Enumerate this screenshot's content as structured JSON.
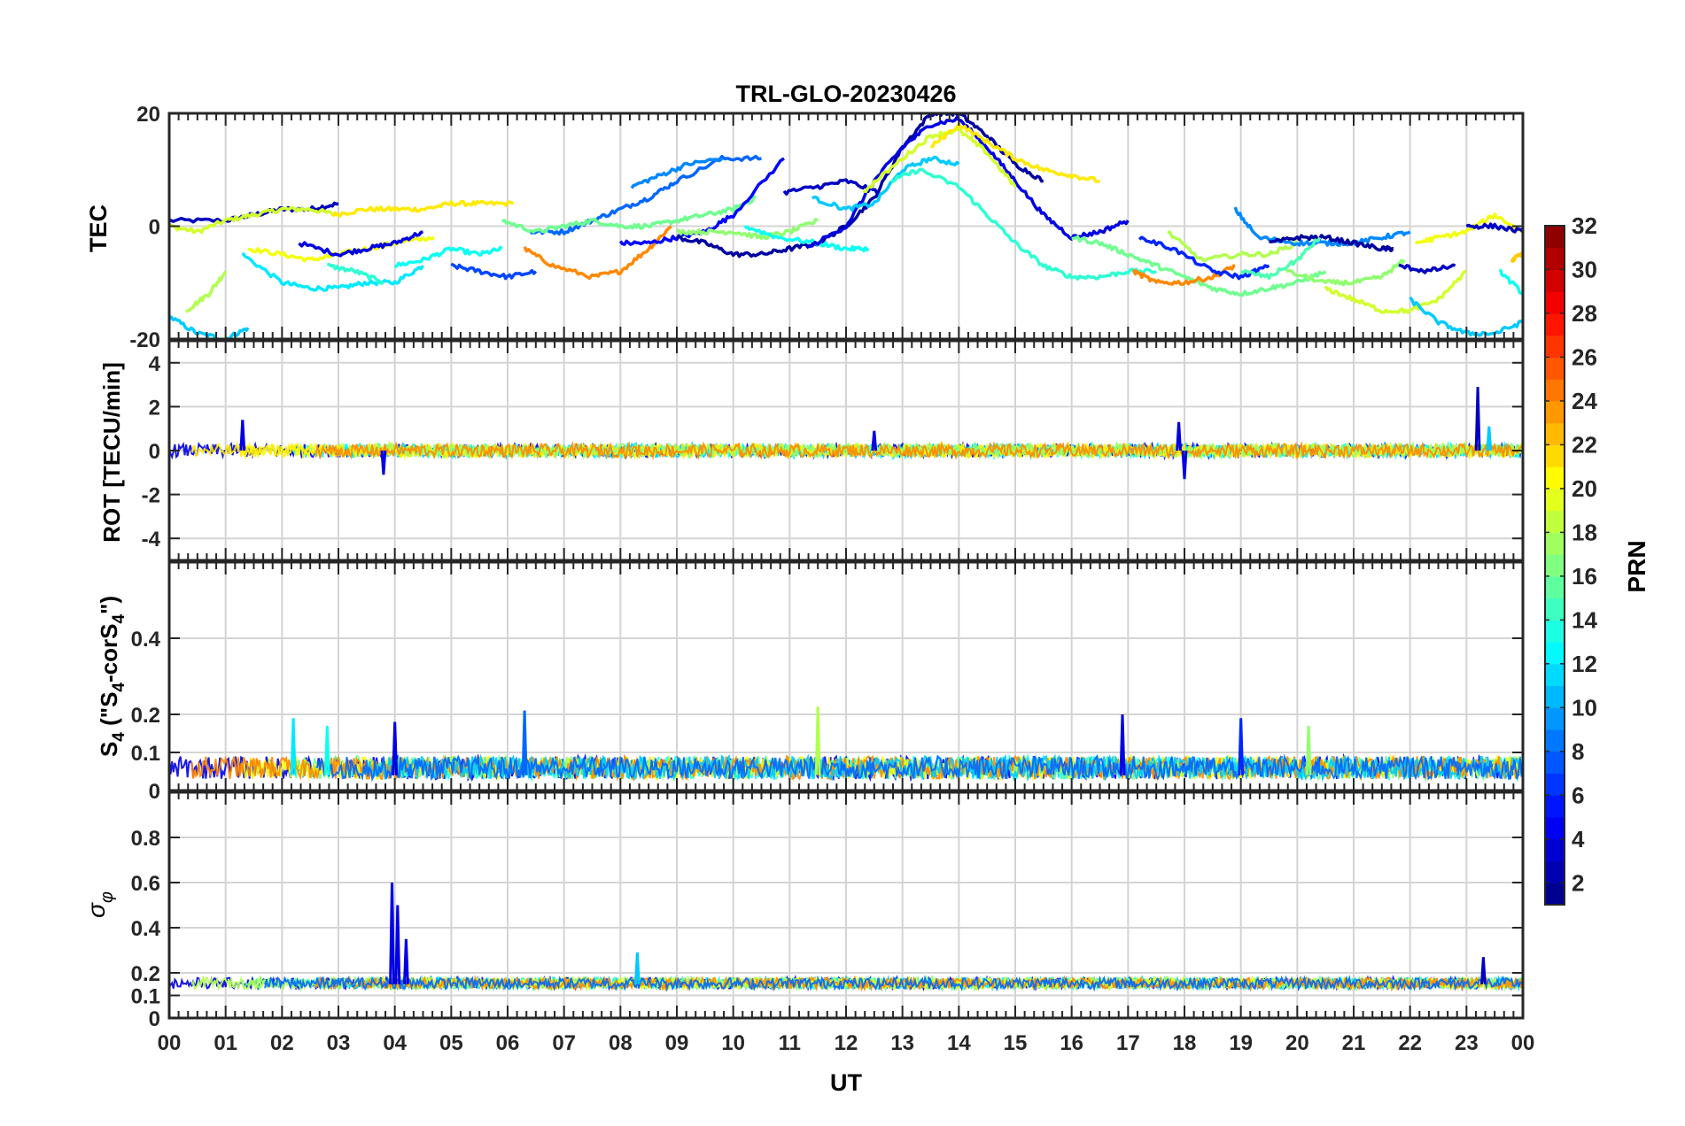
{
  "title": "TRL-GLO-20230426",
  "xlabel": "UT",
  "x_ticks": [
    "00",
    "01",
    "02",
    "03",
    "04",
    "05",
    "06",
    "07",
    "08",
    "09",
    "10",
    "11",
    "12",
    "13",
    "14",
    "15",
    "16",
    "17",
    "18",
    "19",
    "20",
    "21",
    "22",
    "23",
    "00"
  ],
  "colorbar": {
    "label": "PRN",
    "range": [
      1,
      32
    ],
    "ticks": [
      2,
      4,
      6,
      8,
      10,
      12,
      14,
      16,
      18,
      20,
      22,
      24,
      26,
      28,
      30,
      32
    ],
    "colormap": "jet"
  },
  "chart_data": [
    {
      "type": "line",
      "panel": "TEC",
      "ylabel": "TEC",
      "xlim": [
        0,
        24
      ],
      "ylim": [
        -20,
        20
      ],
      "yticks": [
        20,
        0,
        -20
      ],
      "series": [
        {
          "prn": 3,
          "x": [
            0.0,
            1.0,
            1.5,
            2.0,
            2.5,
            3.0
          ],
          "y": [
            1,
            1,
            2,
            3,
            3,
            4
          ]
        },
        {
          "prn": 19,
          "x": [
            0.0,
            0.5,
            1.0,
            1.5,
            2.0,
            2.5,
            3.0
          ],
          "y": [
            0,
            -1,
            1,
            2,
            3,
            3,
            2
          ]
        },
        {
          "prn": 21,
          "x": [
            2.9,
            3.5,
            4.0,
            4.5,
            5.0,
            5.5,
            6.1
          ],
          "y": [
            2,
            3,
            3,
            3,
            4,
            4,
            4
          ]
        },
        {
          "prn": 11,
          "x": [
            0.0,
            0.5,
            1.0,
            1.4
          ],
          "y": [
            -16,
            -19,
            -20,
            -18
          ]
        },
        {
          "prn": 12,
          "x": [
            1.3,
            2.0,
            2.5,
            3.0,
            3.5,
            4.0,
            4.5
          ],
          "y": [
            -5,
            -10,
            -11,
            -11,
            -10,
            -10,
            -7
          ]
        },
        {
          "prn": 18,
          "x": [
            0.3,
            0.7,
            1.0
          ],
          "y": [
            -15,
            -12,
            -8
          ]
        },
        {
          "prn": 20,
          "x": [
            1.4,
            2.0,
            2.5,
            3.0,
            3.5,
            4.0,
            4.7
          ],
          "y": [
            -4,
            -5,
            -6,
            -5,
            -4,
            -3,
            -2
          ]
        },
        {
          "prn": 4,
          "x": [
            2.3,
            3.0,
            3.5,
            4.0,
            4.5
          ],
          "y": [
            -3,
            -5,
            -4,
            -3,
            -1
          ]
        },
        {
          "prn": 14,
          "x": [
            2.8,
            3.3,
            3.8
          ],
          "y": [
            -7,
            -8,
            -10
          ]
        },
        {
          "prn": 13,
          "x": [
            4.0,
            4.5,
            5.0,
            5.5,
            5.9
          ],
          "y": [
            -7,
            -6,
            -4,
            -5,
            -4
          ]
        },
        {
          "prn": 7,
          "x": [
            5.0,
            5.5,
            6.0,
            6.5
          ],
          "y": [
            -7,
            -8,
            -9,
            -8
          ]
        },
        {
          "prn": 24,
          "x": [
            6.3,
            6.8,
            7.5,
            8.0,
            8.5,
            8.9
          ],
          "y": [
            -4,
            -7,
            -9,
            -8,
            -4,
            0
          ]
        },
        {
          "prn": 8,
          "x": [
            6.4,
            7.0,
            7.5,
            8.0,
            8.5,
            9.0,
            9.8,
            10.5
          ],
          "y": [
            -1,
            -1,
            1,
            3,
            5,
            8,
            12,
            12
          ]
        },
        {
          "prn": 16,
          "x": [
            5.9,
            6.5,
            7.0,
            7.5,
            8.0,
            8.5,
            9.0,
            9.5,
            10.0,
            10.4
          ],
          "y": [
            1,
            -1,
            0,
            1,
            0,
            0,
            1,
            2,
            3,
            5
          ]
        },
        {
          "prn": 9,
          "x": [
            8.2,
            8.7,
            9.2,
            9.8
          ],
          "y": [
            7,
            9,
            11,
            12
          ]
        },
        {
          "prn": 5,
          "x": [
            8.0,
            8.5,
            9.0,
            9.5,
            10.0,
            10.9
          ],
          "y": [
            -3,
            -3,
            -2,
            -1,
            2,
            12
          ]
        },
        {
          "prn": 2,
          "x": [
            9.0,
            9.5,
            10.0,
            10.5,
            11.0,
            11.5,
            12.0,
            12.5,
            13.0,
            13.5,
            14.0,
            14.5,
            15.0,
            15.5
          ],
          "y": [
            -2,
            -3,
            -5,
            -5,
            -4,
            -3,
            0,
            5,
            14,
            20,
            20,
            16,
            11,
            8
          ]
        },
        {
          "prn": 17,
          "x": [
            9.0,
            9.5,
            10.0,
            10.5,
            11.0,
            11.5
          ],
          "y": [
            -1,
            -1,
            -1,
            -2,
            -1,
            1
          ]
        },
        {
          "prn": 13,
          "x": [
            10.2,
            10.8,
            11.5,
            12.0,
            12.4
          ],
          "y": [
            0,
            -2,
            -3,
            -4,
            -4
          ]
        },
        {
          "prn": 3,
          "x": [
            10.9,
            11.5,
            12.0,
            12.6
          ],
          "y": [
            6,
            7,
            8,
            6
          ]
        },
        {
          "prn": 4,
          "x": [
            11.3,
            12.0,
            12.5,
            13.0,
            13.5,
            14.0,
            14.5,
            15.0,
            15.5,
            16.0,
            16.5,
            17.0
          ],
          "y": [
            -4,
            0,
            8,
            14,
            18,
            19,
            14,
            8,
            2,
            -2,
            -1,
            1
          ]
        },
        {
          "prn": 11,
          "x": [
            11.4,
            12.0,
            12.5,
            13.0,
            13.5,
            14.0
          ],
          "y": [
            5,
            3,
            4,
            10,
            12,
            11
          ]
        },
        {
          "prn": 19,
          "x": [
            12.3,
            13.0,
            13.5,
            14.0,
            14.5,
            15.0
          ],
          "y": [
            6,
            12,
            16,
            17,
            13,
            7
          ]
        },
        {
          "prn": 21,
          "x": [
            13.5,
            14.0,
            14.5,
            15.0,
            15.5,
            16.0,
            16.5
          ],
          "y": [
            14,
            18,
            15,
            12,
            10,
            9,
            8
          ]
        },
        {
          "prn": 14,
          "x": [
            12.8,
            13.3,
            14.0,
            14.5,
            15.0,
            15.5,
            16.0,
            16.5,
            17.0,
            17.5
          ],
          "y": [
            8,
            10,
            7,
            2,
            -3,
            -7,
            -9,
            -9,
            -8,
            -8
          ]
        },
        {
          "prn": 16,
          "x": [
            16.0,
            16.5,
            17.0,
            17.5,
            18.0,
            18.5,
            19.0,
            19.5,
            20.0,
            20.5
          ],
          "y": [
            -2,
            -3,
            -5,
            -7,
            -9,
            -11,
            -12,
            -11,
            -10,
            -8
          ]
        },
        {
          "prn": 24,
          "x": [
            17.1,
            17.5,
            18.0,
            18.5,
            18.9
          ],
          "y": [
            -8,
            -10,
            -10,
            -9,
            -7
          ]
        },
        {
          "prn": 18,
          "x": [
            17.7,
            18.3,
            19.0,
            19.5,
            20.0
          ],
          "y": [
            -1,
            -6,
            -5,
            -5,
            -3
          ]
        },
        {
          "prn": 6,
          "x": [
            17.2,
            17.8,
            18.5,
            19.0,
            19.5
          ],
          "y": [
            -2,
            -4,
            -8,
            -9,
            -7
          ]
        },
        {
          "prn": 9,
          "x": [
            18.9,
            19.3,
            20.0,
            20.5,
            21.0,
            21.5,
            22.0
          ],
          "y": [
            3,
            -2,
            -3,
            -3,
            -3,
            -2,
            -1
          ]
        },
        {
          "prn": 2,
          "x": [
            19.5,
            20.0,
            20.5,
            21.0,
            21.5,
            21.7
          ],
          "y": [
            -3,
            -2,
            -2,
            -3,
            -4,
            -4
          ]
        },
        {
          "prn": 15,
          "x": [
            19.0,
            19.5,
            20.0,
            20.4
          ],
          "y": [
            -8,
            -9,
            -6,
            -2
          ]
        },
        {
          "prn": 17,
          "x": [
            19.8,
            20.5,
            21.0,
            21.5,
            21.9
          ],
          "y": [
            -8,
            -10,
            -10,
            -9,
            -6
          ]
        },
        {
          "prn": 19,
          "x": [
            20.5,
            21.0,
            21.5,
            22.0,
            22.5,
            23.0
          ],
          "y": [
            -11,
            -13,
            -15,
            -15,
            -13,
            -8
          ]
        },
        {
          "prn": 3,
          "x": [
            21.8,
            22.3,
            22.8
          ],
          "y": [
            -7,
            -8,
            -7
          ]
        },
        {
          "prn": 11,
          "x": [
            22.0,
            22.5,
            23.0,
            23.5,
            24.0
          ],
          "y": [
            -13,
            -17,
            -19,
            -19,
            -17
          ]
        },
        {
          "prn": 20,
          "x": [
            22.1,
            22.5,
            23.0,
            23.5,
            24.0
          ],
          "y": [
            -3,
            -2,
            -1,
            2,
            -1
          ]
        },
        {
          "prn": 3,
          "x": [
            23.0,
            23.5,
            24.0
          ],
          "y": [
            0,
            0,
            -1
          ]
        },
        {
          "prn": 13,
          "x": [
            23.6,
            24.0
          ],
          "y": [
            -8,
            -12
          ]
        },
        {
          "prn": 22,
          "x": [
            23.8,
            24.0
          ],
          "y": [
            -6,
            -5
          ]
        }
      ]
    },
    {
      "type": "line",
      "panel": "ROT",
      "ylabel": "ROT [TECU/min]",
      "xlim": [
        0,
        24
      ],
      "ylim": [
        -5,
        5
      ],
      "yticks": [
        4,
        2,
        0,
        -2,
        -4
      ],
      "typical_abs_value": 0.3,
      "spikes": [
        {
          "x": 1.3,
          "y": 1.4,
          "prn": 4
        },
        {
          "x": 3.8,
          "y": -1.1,
          "prn": 4
        },
        {
          "x": 12.5,
          "y": 0.9,
          "prn": 4
        },
        {
          "x": 17.9,
          "y": 1.3,
          "prn": 4
        },
        {
          "x": 18.0,
          "y": -1.3,
          "prn": 4
        },
        {
          "x": 23.2,
          "y": 2.9,
          "prn": 3
        },
        {
          "x": 23.4,
          "y": 1.1,
          "prn": 11
        }
      ]
    },
    {
      "type": "line",
      "panel": "S4",
      "ylabel": "S4 (\"S4-corS4\")",
      "ylabel_parts": {
        "a": "S",
        "a_sub": "4",
        "b": " (\"S",
        "b_sub": "4",
        "c": "-corS",
        "c_sub": "4",
        "d": "\")"
      },
      "xlim": [
        0,
        24
      ],
      "ylim": [
        0,
        0.6
      ],
      "yticks": [
        0.4,
        0.2,
        0.1,
        0
      ],
      "typical_value": 0.05,
      "spikes": [
        {
          "x": 2.2,
          "y": 0.19,
          "prn": 12
        },
        {
          "x": 2.8,
          "y": 0.17,
          "prn": 13
        },
        {
          "x": 4.0,
          "y": 0.18,
          "prn": 4
        },
        {
          "x": 6.3,
          "y": 0.21,
          "prn": 8
        },
        {
          "x": 11.5,
          "y": 0.22,
          "prn": 18
        },
        {
          "x": 16.9,
          "y": 0.2,
          "prn": 4
        },
        {
          "x": 19.0,
          "y": 0.19,
          "prn": 6
        },
        {
          "x": 20.2,
          "y": 0.17,
          "prn": 17
        }
      ]
    },
    {
      "type": "line",
      "panel": "sigma_phi",
      "ylabel": "σφ",
      "ylabel_parts": {
        "main": "σ",
        "sub": "φ"
      },
      "xlim": [
        0,
        24
      ],
      "ylim": [
        0,
        1
      ],
      "yticks": [
        0.8,
        0.6,
        0.4,
        0.2,
        0.1,
        0
      ],
      "typical_value": 0.15,
      "spikes": [
        {
          "x": 3.95,
          "y": 0.6,
          "prn": 4
        },
        {
          "x": 4.05,
          "y": 0.5,
          "prn": 4
        },
        {
          "x": 4.2,
          "y": 0.35,
          "prn": 4
        },
        {
          "x": 8.3,
          "y": 0.29,
          "prn": 11
        },
        {
          "x": 23.3,
          "y": 0.27,
          "prn": 3
        }
      ]
    }
  ]
}
